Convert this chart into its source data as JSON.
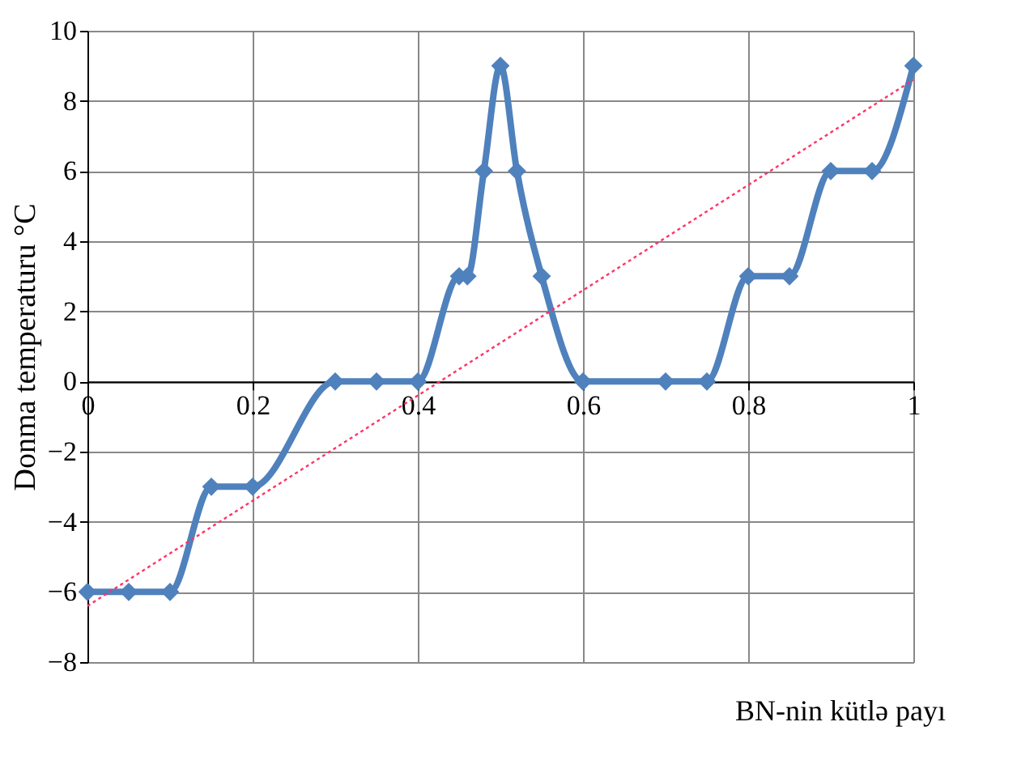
{
  "chart_data": {
    "type": "line",
    "xlabel": "BN-nin kütlə payı",
    "ylabel": "Donma temperaturu  °C",
    "x": [
      0,
      0.05,
      0.1,
      0.15,
      0.2,
      0.3,
      0.35,
      0.4,
      0.45,
      0.46,
      0.48,
      0.5,
      0.52,
      0.55,
      0.6,
      0.7,
      0.75,
      0.8,
      0.85,
      0.9,
      0.95,
      1
    ],
    "series": [
      {
        "color": "#4f81bd",
        "marker": "diamond",
        "line_style": "solid",
        "values": [
          -6,
          -6,
          -6,
          -3,
          -3,
          0,
          0,
          0,
          3,
          3,
          6,
          9,
          6,
          3,
          0,
          0,
          0,
          3,
          3,
          6,
          6,
          9
        ]
      },
      {
        "type": "line",
        "color": "#ff3366",
        "marker": "none",
        "line_style": "dotted",
        "x": [
          0,
          1
        ],
        "values": [
          -6.4,
          8.6
        ]
      }
    ],
    "xlim": [
      0,
      1
    ],
    "xticks": [
      0,
      0.2,
      0.4,
      0.6,
      0.8,
      1
    ],
    "ylim": [
      -8,
      10
    ],
    "yticks": [
      -8,
      -6,
      -4,
      -2,
      0,
      2,
      4,
      6,
      8,
      10
    ],
    "grid": true
  }
}
